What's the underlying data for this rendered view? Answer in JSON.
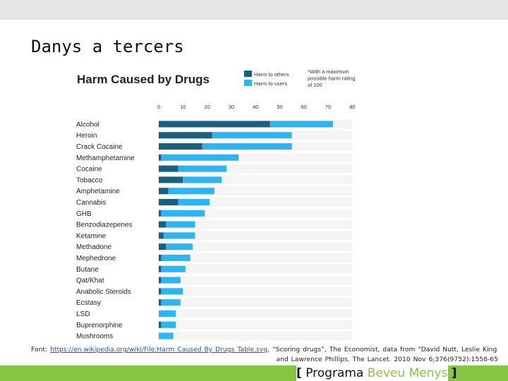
{
  "slide": {
    "title": "Danys a tercers",
    "source_prefix": "Font: ",
    "source_link": "https://en.wikipedia.org/wiki/File:Harm Caused By Drugs Table.svg",
    "source_rest": ", “Scoring drugs”, The Economist, data from “David Nutt, Leslie King",
    "source_line2": "and Lawrence Phillips, The Lancet. 2010 Nov 6;376(9752):1558-65",
    "brand": {
      "open": "[",
      "word1": "Programa",
      "word2": "Beveu Menys",
      "close": "]"
    }
  },
  "chart_data": {
    "type": "bar",
    "orientation": "horizontal",
    "stacked": true,
    "title": "Harm Caused by Drugs",
    "note": "*With a maximum possible harm rating of 100",
    "xlim": [
      0,
      80
    ],
    "xticks": [
      0,
      10,
      20,
      30,
      40,
      50,
      60,
      70,
      80
    ],
    "categories": [
      "Alcohol",
      "Heroin",
      "Crack Cocaine",
      "Methamphetamine",
      "Cocaine",
      "Tobacco",
      "Amphetamine",
      "Cannabis",
      "GHB",
      "Benzodiazepenes",
      "Ketamine",
      "Methadone",
      "Mephedrone",
      "Butane",
      "Qat/Khat",
      "Anabolic Steroids",
      "Ecstasy",
      "LSD",
      "Buprenorphine",
      "Mushrooms"
    ],
    "series": [
      {
        "name": "Harm to others",
        "color": "#1b5f7e",
        "values": [
          46,
          22,
          18,
          1,
          8,
          10,
          4,
          8,
          1,
          3,
          2,
          3,
          1,
          1,
          1,
          1,
          1,
          0,
          1,
          0
        ]
      },
      {
        "name": "Harm to users",
        "color": "#2db4f2",
        "values": [
          26,
          33,
          37,
          32,
          20,
          16,
          19,
          13,
          18,
          12,
          13,
          11,
          12,
          10,
          8,
          9,
          8,
          7,
          6,
          6
        ]
      }
    ],
    "legend_position": "top-right",
    "grid": false
  }
}
